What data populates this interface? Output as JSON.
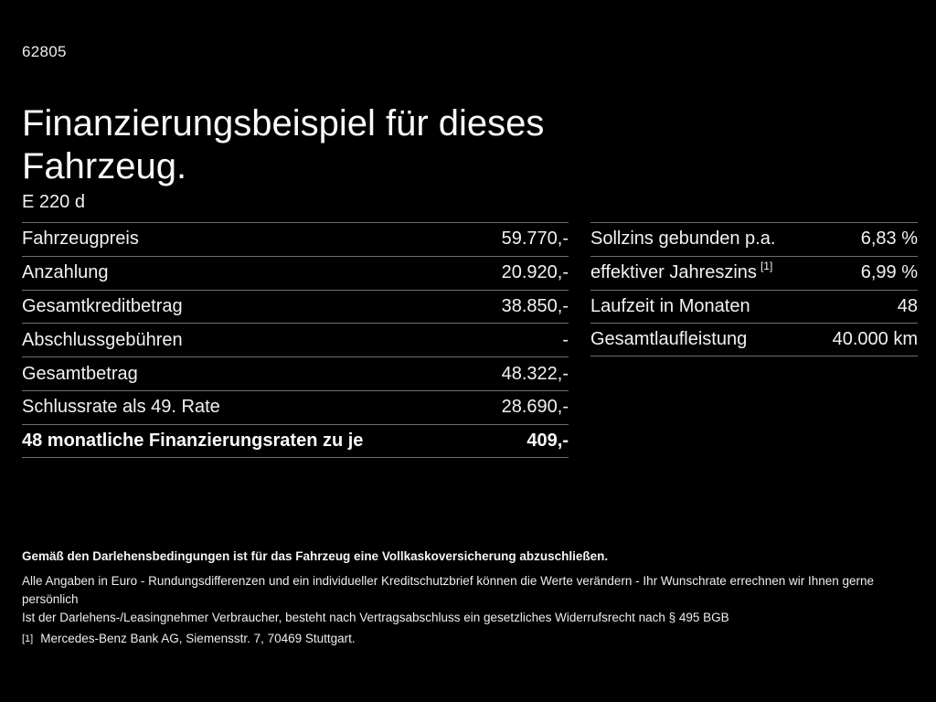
{
  "doc_number": "62805",
  "title": "Finanzierungsbeispiel für dieses Fahrzeug.",
  "model": "E 220 d",
  "left_table": {
    "rows": [
      {
        "label": "Fahrzeugpreis",
        "value": "59.770,-",
        "bold": false
      },
      {
        "label": "Anzahlung",
        "value": "20.920,-",
        "bold": false
      },
      {
        "label": "Gesamtkreditbetrag",
        "value": "38.850,-",
        "bold": false
      },
      {
        "label": "Abschlussgebühren",
        "value": "-",
        "bold": false
      },
      {
        "label": "Gesamtbetrag",
        "value": "48.322,-",
        "bold": false
      },
      {
        "label": "Schlussrate als 49. Rate",
        "value": "28.690,-",
        "bold": false
      },
      {
        "label": "48 monatliche Finanzierungsraten zu je",
        "value": "409,-",
        "bold": true
      }
    ]
  },
  "right_table": {
    "rows": [
      {
        "label": "Sollzins gebunden p.a.",
        "value": "6,83 %",
        "bold": false
      },
      {
        "label": "effektiver Jahreszins",
        "sup": "[1]",
        "value": "6,99 %",
        "bold": false
      },
      {
        "label": "Laufzeit in Monaten",
        "value": "48",
        "bold": false
      },
      {
        "label": "Gesamtlaufleistung",
        "value": "40.000 km",
        "bold": false
      }
    ]
  },
  "footnotes": {
    "insurance_bold": "Gemäß den Darlehensbedingungen ist für das Fahrzeug eine Vollkaskoversicherung abzuschließen.",
    "line2": "Alle Angaben in Euro - Rundungsdifferenzen und ein individueller Kreditschutzbrief können die Werte verändern - Ihr Wunschrate errechnen wir Ihnen gerne persönlich",
    "line3": "Ist der Darlehens-/Leasingnehmer Verbraucher, besteht nach Vertragsabschluss ein gesetzliches Widerrufsrecht nach § 495 BGB",
    "reference_marker": "[1]",
    "reference": "Mercedes-Benz Bank AG, Siemensstr. 7, 70469 Stuttgart."
  },
  "colors": {
    "background": "#000000",
    "text": "#f2f2f2",
    "divider": "#6f6f6f"
  }
}
